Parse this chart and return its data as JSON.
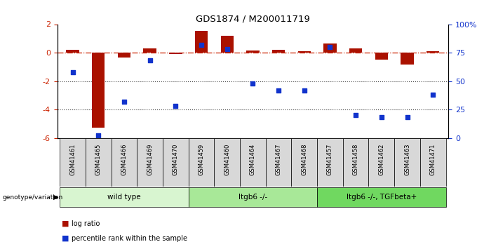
{
  "title": "GDS1874 / M200011719",
  "samples": [
    "GSM41461",
    "GSM41465",
    "GSM41466",
    "GSM41469",
    "GSM41470",
    "GSM41459",
    "GSM41460",
    "GSM41464",
    "GSM41467",
    "GSM41468",
    "GSM41457",
    "GSM41458",
    "GSM41462",
    "GSM41463",
    "GSM41471"
  ],
  "log_ratio": [
    0.2,
    -5.3,
    -0.35,
    0.3,
    -0.12,
    1.55,
    1.2,
    0.15,
    0.2,
    0.1,
    0.65,
    0.3,
    -0.5,
    -0.85,
    0.12
  ],
  "percentile_rank": [
    58,
    2,
    32,
    68,
    28,
    82,
    78,
    48,
    42,
    42,
    80,
    20,
    18,
    18,
    38
  ],
  "groups": [
    {
      "label": "wild type",
      "start": 0,
      "end": 5,
      "color": "#d8f5d0"
    },
    {
      "label": "ltgb6 -/-",
      "start": 5,
      "end": 10,
      "color": "#a8e898"
    },
    {
      "label": "ltgb6 -/-, TGFbeta+",
      "start": 10,
      "end": 15,
      "color": "#70d860"
    }
  ],
  "ylim_left": [
    -6,
    2
  ],
  "ylim_right": [
    0,
    100
  ],
  "yticks_left": [
    -6,
    -4,
    -2,
    0,
    2
  ],
  "ytick_labels_left": [
    "-6",
    "-4",
    "-2",
    "0",
    "2"
  ],
  "yticks_right": [
    0,
    25,
    50,
    75,
    100
  ],
  "ytick_labels_right": [
    "0",
    "25",
    "50",
    "75",
    "100%"
  ],
  "bar_color_red": "#aa1100",
  "bar_color_blue": "#1133cc",
  "hline_color": "#cc2200",
  "dotted_line_color": "#404040",
  "background_color": "#ffffff",
  "legend_log_ratio": "log ratio",
  "legend_percentile": "percentile rank within the sample",
  "bar_width": 0.5,
  "marker_size": 22
}
